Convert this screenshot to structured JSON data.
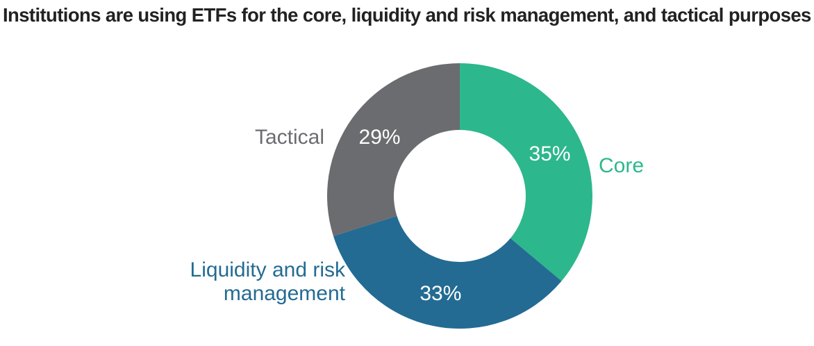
{
  "chart_data": {
    "type": "pie",
    "title": "Institutions are using ETFs for the core, liquidity and risk management, and tactical purposes",
    "donut": true,
    "slices": [
      {
        "label": "Core",
        "value": 35,
        "value_label": "35%",
        "color": "#2db78c"
      },
      {
        "label": "Liquidity and risk management",
        "label_lines": [
          "Liquidity and risk",
          "management"
        ],
        "value": 33,
        "value_label": "33%",
        "color": "#236b93"
      },
      {
        "label": "Tactical",
        "value": 29,
        "value_label": "29%",
        "color": "#6b6c70"
      }
    ]
  }
}
